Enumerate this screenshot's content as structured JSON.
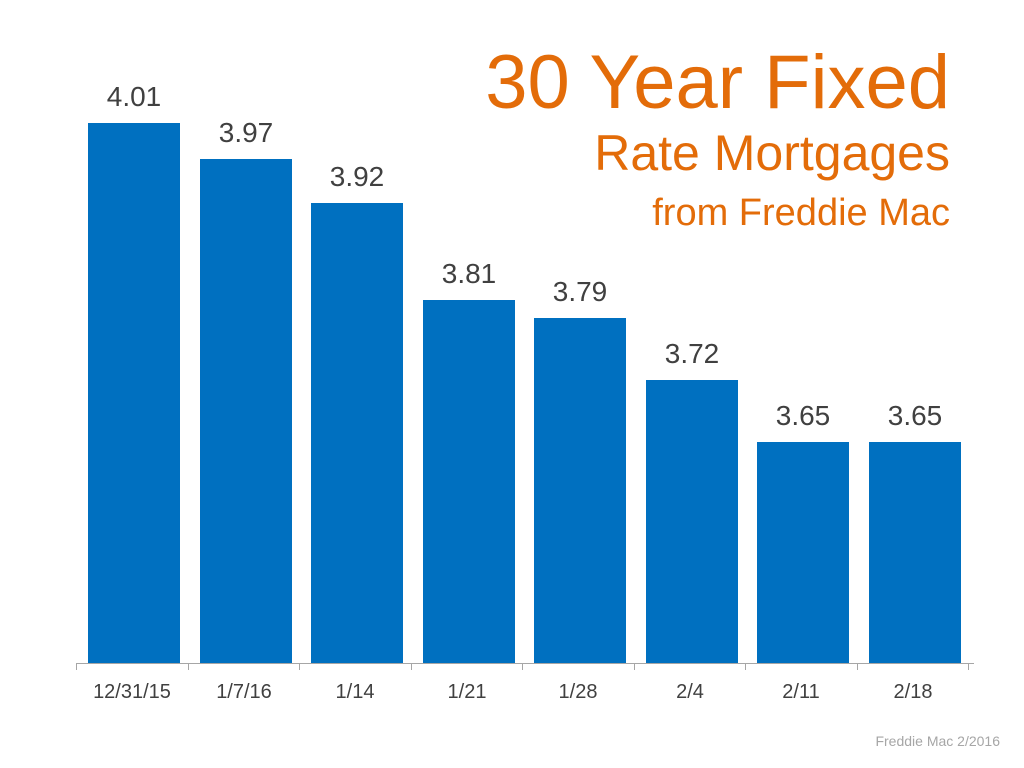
{
  "title": {
    "line1": "30 Year Fixed",
    "line2": "Rate Mortgages",
    "line3": "from Freddie Mac"
  },
  "source": "Freddie Mac 2/2016",
  "colors": {
    "bar": "#0070C0",
    "title": "#E36C09",
    "label": "#404040",
    "axis": "#A6A6A6"
  },
  "chart_data": {
    "type": "bar",
    "title": "30 Year Fixed Rate Mortgages from Freddie Mac",
    "xlabel": "",
    "ylabel": "",
    "categories": [
      "12/31/15",
      "1/7/16",
      "1/14",
      "1/21",
      "1/28",
      "2/4",
      "2/11",
      "2/18"
    ],
    "values": [
      4.01,
      3.97,
      3.92,
      3.81,
      3.79,
      3.72,
      3.65,
      3.65
    ],
    "value_labels": [
      "4.01",
      "3.97",
      "3.92",
      "3.81",
      "3.79",
      "3.72",
      "3.65",
      "3.65"
    ],
    "ylim": [
      3.4,
      4.1
    ],
    "grid": false,
    "legend": "none",
    "data_labels": true,
    "annotation": "Freddie Mac 2/2016"
  }
}
